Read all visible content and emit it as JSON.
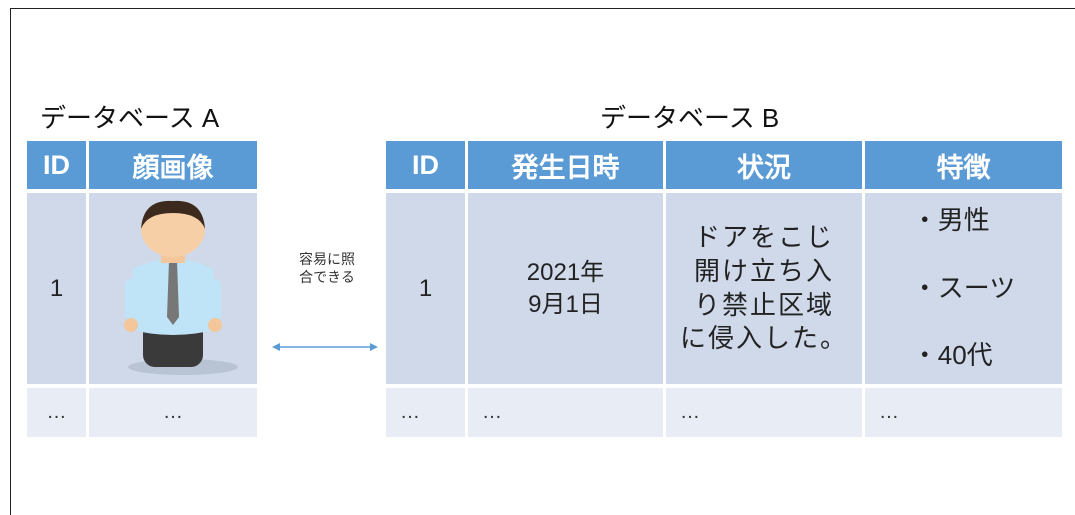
{
  "database_a": {
    "title": "データベース A",
    "headers": [
      "ID",
      "顔画像"
    ],
    "rows": [
      [
        "1"
      ],
      [
        "…",
        "…"
      ]
    ]
  },
  "link": {
    "label": "容易に照\n合できる"
  },
  "database_b": {
    "title": "データベース B",
    "headers": [
      "ID",
      "発生日時",
      "状況",
      "特徴"
    ],
    "rows": [
      [
        "1",
        "2021年\n9月1日",
        "ドアをこじ\n開け立ち入\nり禁止区域\nに侵入した。",
        [
          "・男性",
          "・スーツ",
          "・40代"
        ]
      ],
      [
        "…",
        "…",
        "…",
        "…"
      ]
    ]
  }
}
